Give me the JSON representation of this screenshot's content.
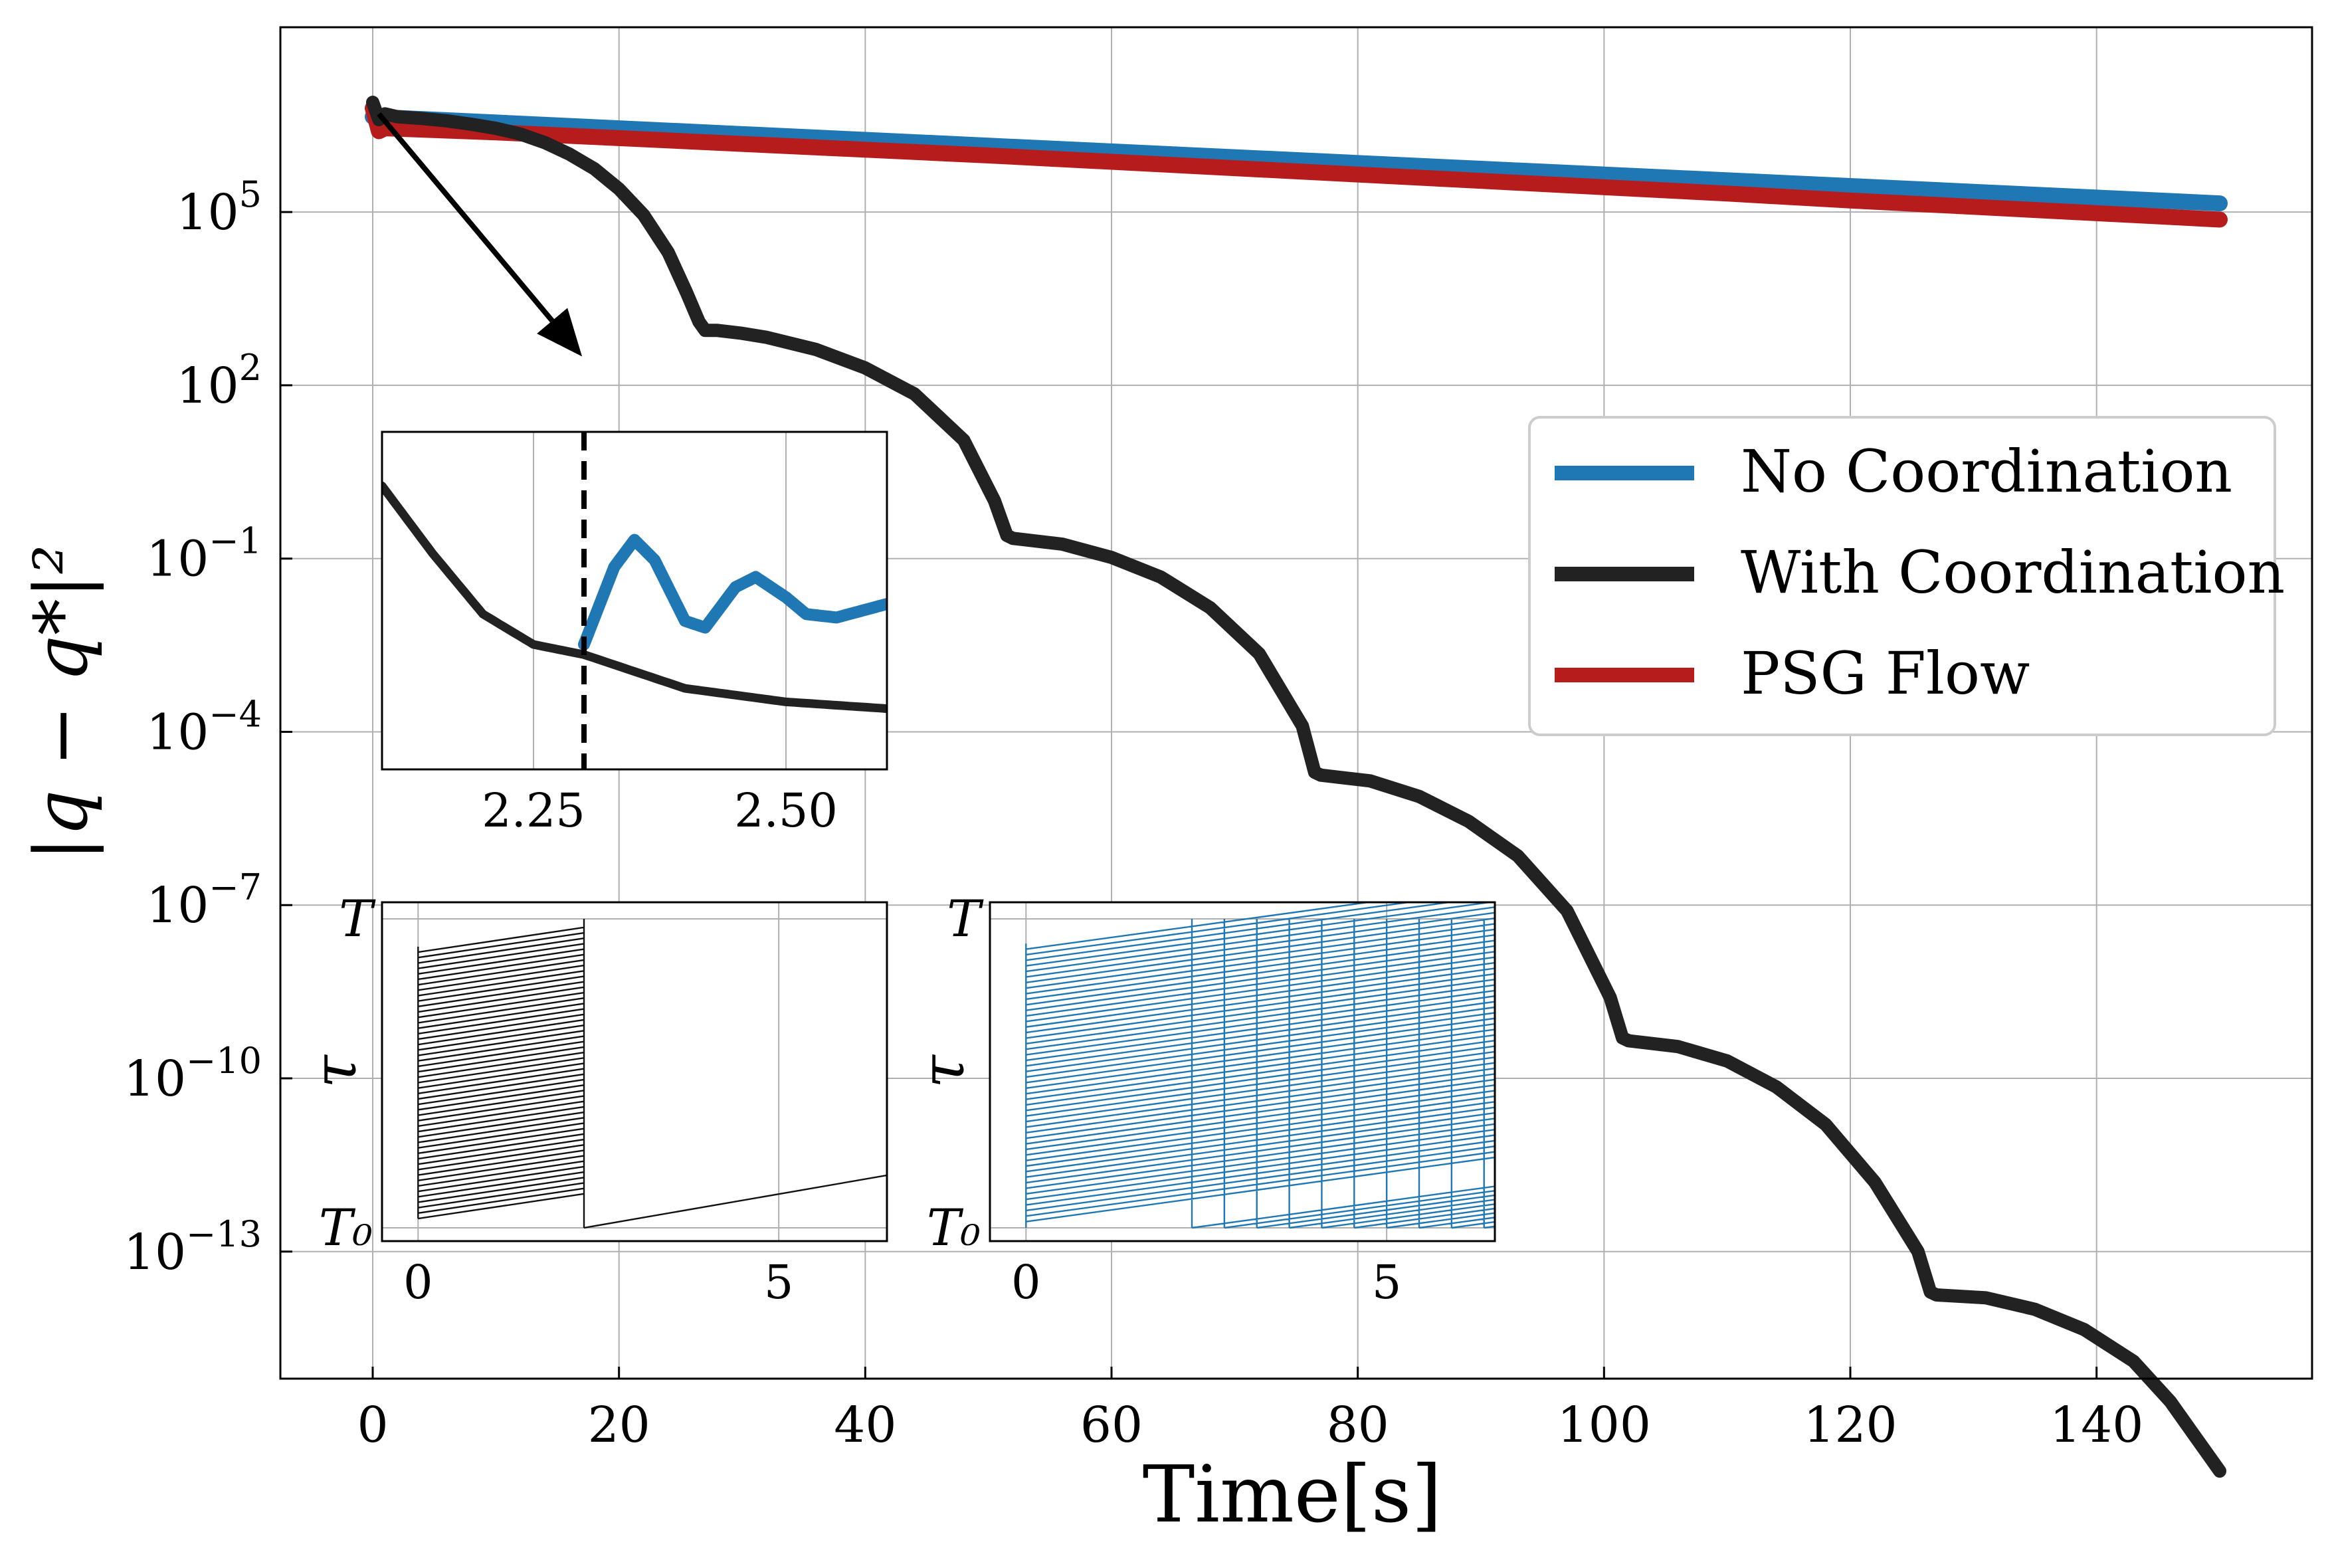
{
  "chart_data": [
    {
      "type": "line",
      "xlabel": "Time[s]",
      "ylabel": "|q − q*|²",
      "y_scale": "log",
      "xlim": [
        -7.5,
        157.5
      ],
      "ylim_log10": [
        -15.2,
        8.2
      ],
      "xticks": [
        "0",
        "20",
        "40",
        "60",
        "80",
        "100",
        "120",
        "140"
      ],
      "xtick_values": [
        0,
        20,
        40,
        60,
        80,
        100,
        120,
        140
      ],
      "yticks": [
        {
          "base": "10",
          "exp": "5",
          "value_log10": 5
        },
        {
          "base": "10",
          "exp": "2",
          "value_log10": 2
        },
        {
          "base": "10",
          "exp": "−1",
          "value_log10": -1
        },
        {
          "base": "10",
          "exp": "−4",
          "value_log10": -4
        },
        {
          "base": "10",
          "exp": "−7",
          "value_log10": -7
        },
        {
          "base": "10",
          "exp": "−10",
          "value_log10": -10
        },
        {
          "base": "10",
          "exp": "−13",
          "value_log10": -13
        }
      ],
      "grid": true,
      "legend": "right",
      "series": [
        {
          "name": "No Coordination",
          "color": "#1f77b4",
          "x": [
            0,
            10,
            20,
            30,
            40,
            50,
            60,
            70,
            80,
            90,
            100,
            110,
            120,
            130,
            140,
            150
          ],
          "log10_y": [
            6.65,
            6.55,
            6.45,
            6.35,
            6.25,
            6.15,
            6.05,
            5.95,
            5.85,
            5.75,
            5.65,
            5.55,
            5.45,
            5.35,
            5.25,
            5.15
          ]
        },
        {
          "name": "With Coordination",
          "color": "#222222",
          "x": [
            0,
            0.5,
            1,
            2,
            4,
            6,
            8,
            10,
            12,
            14,
            16,
            18,
            20,
            22,
            24,
            25.5,
            26.5,
            27,
            28,
            30,
            32,
            36,
            40,
            44,
            48,
            50.5,
            51.5,
            52,
            56,
            60,
            64,
            68,
            72,
            75.5,
            76.5,
            77,
            81,
            85,
            89,
            93,
            97,
            100.5,
            101.5,
            102,
            106,
            110,
            114,
            118,
            122,
            125.5,
            126.5,
            127,
            131,
            135,
            139,
            143,
            146,
            148,
            150
          ],
          "log10_y": [
            6.9,
            6.6,
            6.7,
            6.65,
            6.62,
            6.58,
            6.52,
            6.45,
            6.35,
            6.2,
            6.0,
            5.75,
            5.4,
            4.95,
            4.3,
            3.6,
            3.1,
            2.95,
            2.95,
            2.9,
            2.83,
            2.62,
            2.3,
            1.85,
            1.05,
            0.0,
            -0.6,
            -0.65,
            -0.75,
            -0.98,
            -1.32,
            -1.85,
            -2.65,
            -3.9,
            -4.7,
            -4.75,
            -4.85,
            -5.12,
            -5.55,
            -6.15,
            -7.1,
            -8.6,
            -9.3,
            -9.35,
            -9.45,
            -9.7,
            -10.15,
            -10.8,
            -11.8,
            -13.0,
            -13.7,
            -13.75,
            -13.8,
            -14.0,
            -14.35,
            -14.9,
            -15.6,
            -16.2,
            -16.8
          ]
        },
        {
          "name": "PSG Flow",
          "color": "#b71c1c",
          "x": [
            0,
            0.5,
            1,
            10,
            20,
            30,
            40,
            50,
            60,
            70,
            80,
            90,
            100,
            110,
            120,
            130,
            140,
            150
          ],
          "log10_y": [
            6.8,
            6.4,
            6.45,
            6.38,
            6.28,
            6.18,
            6.08,
            5.98,
            5.87,
            5.76,
            5.65,
            5.54,
            5.43,
            5.32,
            5.2,
            5.09,
            4.98,
            4.87
          ]
        }
      ],
      "annotations": [
        {
          "type": "arrow",
          "from": [
            0.5,
            6.7
          ],
          "to": [
            17,
            2.5
          ]
        }
      ]
    },
    {
      "type": "line",
      "role": "zoom-inset",
      "xlim": [
        2.1,
        2.6
      ],
      "ylim_log10": [
        -5,
        0.0
      ],
      "xticks": [
        "2.25",
        "2.50"
      ],
      "xtick_values": [
        2.25,
        2.5
      ],
      "vline_x": 2.3,
      "series": [
        {
          "color": "#222222",
          "x": [
            2.1,
            2.15,
            2.2,
            2.25,
            2.3,
            2.35,
            2.4,
            2.5,
            2.6
          ],
          "log10_y": [
            -0.8,
            -1.8,
            -2.7,
            -3.15,
            -3.3,
            -3.55,
            -3.8,
            -4.0,
            -4.1
          ]
        },
        {
          "color": "#1f77b4",
          "x": [
            2.3,
            2.33,
            2.35,
            2.37,
            2.4,
            2.42,
            2.45,
            2.47,
            2.5,
            2.52,
            2.55,
            2.6
          ],
          "log10_y": [
            -3.15,
            -2.0,
            -1.6,
            -1.9,
            -2.8,
            -2.9,
            -2.3,
            -2.15,
            -2.45,
            -2.7,
            -2.75,
            -2.55
          ]
        }
      ]
    },
    {
      "type": "line",
      "role": "timer-inset",
      "ylabel": "τ",
      "xticks": [
        "0",
        "5"
      ],
      "xtick_values": [
        0,
        5
      ],
      "yticks": [
        "T",
        "T₀"
      ],
      "xlim": [
        -0.5,
        6.5
      ],
      "color": "#111111",
      "sync_time": 2.3,
      "n_agents": 50
    },
    {
      "type": "line",
      "role": "timer-inset",
      "ylabel": "τ",
      "xticks": [
        "0",
        "5"
      ],
      "xtick_values": [
        0,
        5
      ],
      "yticks": [
        "T",
        "T₀"
      ],
      "xlim": [
        -0.5,
        6.5
      ],
      "color": "#1f77b4",
      "n_agents": 50
    }
  ]
}
